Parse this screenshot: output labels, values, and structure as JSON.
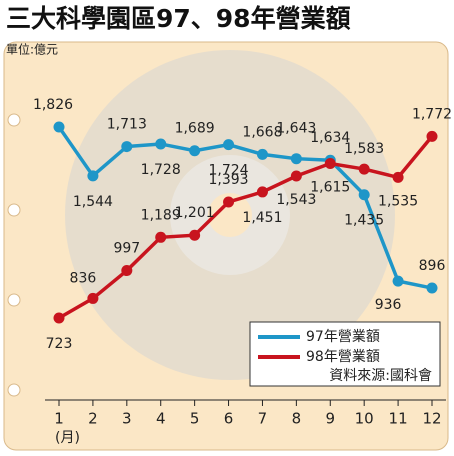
{
  "chart_data": {
    "type": "line",
    "title": "三大科學園區97、98年營業額",
    "unit": "單位:億元",
    "source": "資料來源:國科會",
    "x_label": "(月)",
    "categories": [
      "1",
      "2",
      "3",
      "4",
      "5",
      "6",
      "7",
      "8",
      "9",
      "10",
      "11",
      "12"
    ],
    "series": [
      {
        "name": "97年營業額",
        "color": "#1e96c8",
        "values": [
          1826,
          1544,
          1713,
          1728,
          1689,
          1724,
          1668,
          1643,
          1634,
          1435,
          936,
          896
        ],
        "value_labels": [
          "1,826",
          "1,544",
          "1,713",
          "1,728",
          "1,689",
          "1,724",
          "1,668",
          "1,643",
          "1,634",
          "1,435",
          "936",
          "896"
        ]
      },
      {
        "name": "98年營業額",
        "color": "#c8141e",
        "values": [
          723,
          836,
          997,
          1189,
          1201,
          1393,
          1451,
          1543,
          1615,
          1583,
          1535,
          1772
        ],
        "value_labels": [
          "723",
          "836",
          "997",
          "1,189",
          "1,201",
          "1,393",
          "1,451",
          "1,543",
          "1,615",
          "1,583",
          "1,535",
          "1,772"
        ]
      }
    ]
  }
}
